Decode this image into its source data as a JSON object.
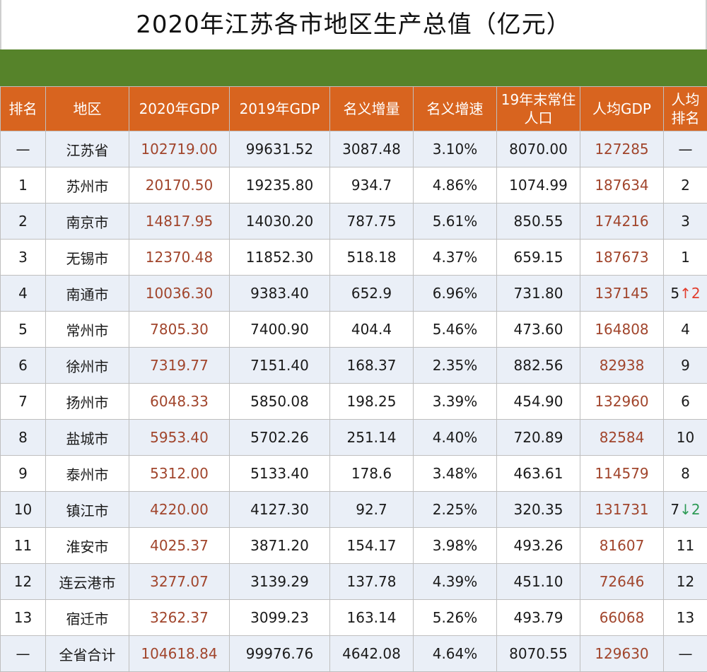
{
  "title": "2020年江苏各市地区生产总值（亿元）",
  "colors": {
    "header_bg": "#d8641f",
    "band": "#56832a",
    "gdp_text": "#a1452c",
    "up": "#e23c2c",
    "down": "#2c9a55"
  },
  "headers": [
    "排名",
    "地区",
    "2020年GDP",
    "2019年GDP",
    "名义增量",
    "名义增速",
    "19年末常住人口",
    "人均GDP",
    "人均排名"
  ],
  "header_display": {
    "rank": "排名",
    "region": "地区",
    "gdp2020": "2020年GDP",
    "gdp2019": "2019年GDP",
    "increase": "名义增量",
    "growth": "名义增速",
    "pop_line1": "19年末常住",
    "pop_line2": "人口",
    "per_capita": "人均GDP",
    "pc_rank_line1": "人均",
    "pc_rank_line2": "排名"
  },
  "rows": [
    {
      "rank": "—",
      "region": "江苏省",
      "gdp2020": "102719.00",
      "gdp2019": "99631.52",
      "increase": "3087.48",
      "growth": "3.10%",
      "pop": "8070.00",
      "per_capita": "127285",
      "pc_rank": "—",
      "pc_change": ""
    },
    {
      "rank": "1",
      "region": "苏州市",
      "gdp2020": "20170.50",
      "gdp2019": "19235.80",
      "increase": "934.7",
      "growth": "4.86%",
      "pop": "1074.99",
      "per_capita": "187634",
      "pc_rank": "2",
      "pc_change": ""
    },
    {
      "rank": "2",
      "region": "南京市",
      "gdp2020": "14817.95",
      "gdp2019": "14030.20",
      "increase": "787.75",
      "growth": "5.61%",
      "pop": "850.55",
      "per_capita": "174216",
      "pc_rank": "3",
      "pc_change": ""
    },
    {
      "rank": "3",
      "region": "无锡市",
      "gdp2020": "12370.48",
      "gdp2019": "11852.30",
      "increase": "518.18",
      "growth": "4.37%",
      "pop": "659.15",
      "per_capita": "187673",
      "pc_rank": "1",
      "pc_change": ""
    },
    {
      "rank": "4",
      "region": "南通市",
      "gdp2020": "10036.30",
      "gdp2019": "9383.40",
      "increase": "652.9",
      "growth": "6.96%",
      "pop": "731.80",
      "per_capita": "137145",
      "pc_rank": "5",
      "pc_change": "↑2",
      "pc_change_dir": "up"
    },
    {
      "rank": "5",
      "region": "常州市",
      "gdp2020": "7805.30",
      "gdp2019": "7400.90",
      "increase": "404.4",
      "growth": "5.46%",
      "pop": "473.60",
      "per_capita": "164808",
      "pc_rank": "4",
      "pc_change": ""
    },
    {
      "rank": "6",
      "region": "徐州市",
      "gdp2020": "7319.77",
      "gdp2019": "7151.40",
      "increase": "168.37",
      "growth": "2.35%",
      "pop": "882.56",
      "per_capita": "82938",
      "pc_rank": "9",
      "pc_change": ""
    },
    {
      "rank": "7",
      "region": "扬州市",
      "gdp2020": "6048.33",
      "gdp2019": "5850.08",
      "increase": "198.25",
      "growth": "3.39%",
      "pop": "454.90",
      "per_capita": "132960",
      "pc_rank": "6",
      "pc_change": ""
    },
    {
      "rank": "8",
      "region": "盐城市",
      "gdp2020": "5953.40",
      "gdp2019": "5702.26",
      "increase": "251.14",
      "growth": "4.40%",
      "pop": "720.89",
      "per_capita": "82584",
      "pc_rank": "10",
      "pc_change": ""
    },
    {
      "rank": "9",
      "region": "泰州市",
      "gdp2020": "5312.00",
      "gdp2019": "5133.40",
      "increase": "178.6",
      "growth": "3.48%",
      "pop": "463.61",
      "per_capita": "114579",
      "pc_rank": "8",
      "pc_change": ""
    },
    {
      "rank": "10",
      "region": "镇江市",
      "gdp2020": "4220.00",
      "gdp2019": "4127.30",
      "increase": "92.7",
      "growth": "2.25%",
      "pop": "320.35",
      "per_capita": "131731",
      "pc_rank": "7",
      "pc_change": "↓2",
      "pc_change_dir": "down"
    },
    {
      "rank": "11",
      "region": "淮安市",
      "gdp2020": "4025.37",
      "gdp2019": "3871.20",
      "increase": "154.17",
      "growth": "3.98%",
      "pop": "493.26",
      "per_capita": "81607",
      "pc_rank": "11",
      "pc_change": ""
    },
    {
      "rank": "12",
      "region": "连云港市",
      "gdp2020": "3277.07",
      "gdp2019": "3139.29",
      "increase": "137.78",
      "growth": "4.39%",
      "pop": "451.10",
      "per_capita": "72646",
      "pc_rank": "12",
      "pc_change": ""
    },
    {
      "rank": "13",
      "region": "宿迁市",
      "gdp2020": "3262.37",
      "gdp2019": "3099.23",
      "increase": "163.14",
      "growth": "5.26%",
      "pop": "493.79",
      "per_capita": "66068",
      "pc_rank": "13",
      "pc_change": ""
    },
    {
      "rank": "—",
      "region": "全省合计",
      "gdp2020": "104618.84",
      "gdp2019": "99976.76",
      "increase": "4642.08",
      "growth": "4.64%",
      "pop": "8070.55",
      "per_capita": "129630",
      "pc_rank": "—",
      "pc_change": ""
    }
  ]
}
